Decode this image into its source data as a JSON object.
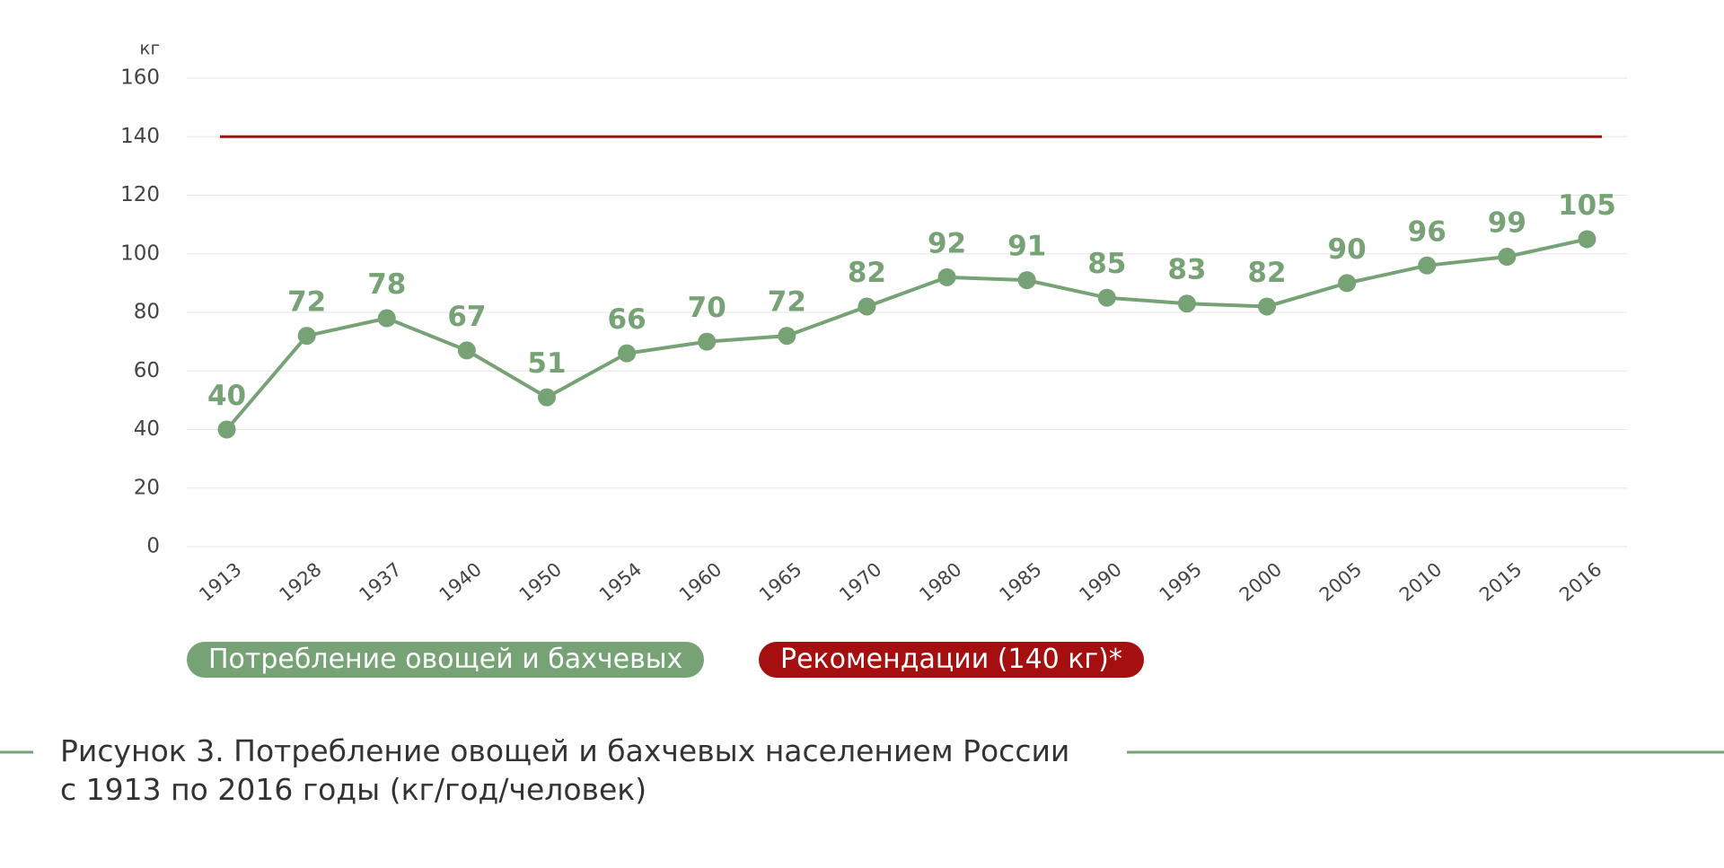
{
  "chart_data": {
    "type": "line",
    "y_unit": "кг",
    "categories": [
      "1913",
      "1928",
      "1937",
      "1940",
      "1950",
      "1954",
      "1960",
      "1965",
      "1970",
      "1980",
      "1985",
      "1990",
      "1995",
      "2000",
      "2005",
      "2010",
      "2015",
      "2016"
    ],
    "series": [
      {
        "name": "Потребление овощей и бахчевых",
        "color": "#76a276",
        "values": [
          40,
          72,
          78,
          67,
          51,
          66,
          70,
          72,
          82,
          92,
          91,
          85,
          83,
          82,
          90,
          96,
          99,
          105
        ]
      }
    ],
    "reference": {
      "name": "Рекомендации (140 кг)*",
      "value": 140,
      "color": "#a50f0f"
    },
    "ylim": [
      0,
      160
    ],
    "yticks": [
      0,
      20,
      40,
      60,
      80,
      100,
      120,
      140,
      160
    ],
    "grid": true,
    "caption": [
      "Рисунок 3. Потребление овощей и бахчевых населением России",
      "с 1913 по 2016 годы (кг/год/человек)"
    ]
  }
}
